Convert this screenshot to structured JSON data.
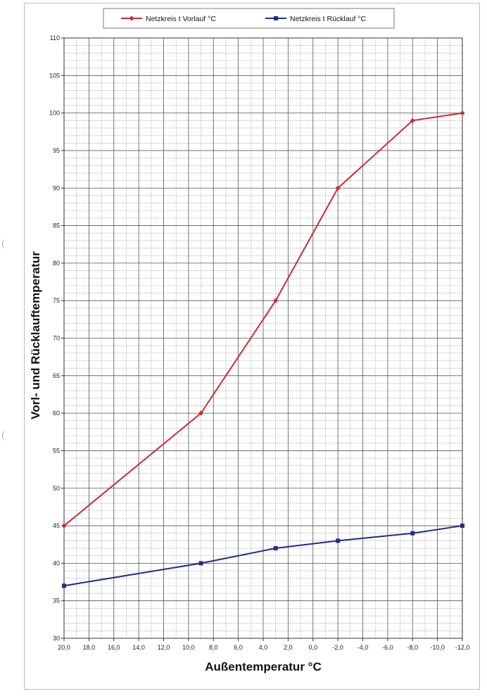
{
  "chart_data": {
    "type": "line",
    "xlabel": "Außentemperatur °C",
    "ylabel": "Vorl- und Rücklauftemperatur",
    "xlim": [
      20,
      -12
    ],
    "ylim": [
      30,
      110
    ],
    "x_ticks": [
      "20,0",
      "18,0",
      "16,0",
      "14,0",
      "12,0",
      "10,0",
      "8,0",
      "6,0",
      "4,0",
      "2,0",
      "0,0",
      "-2,0",
      "-4,0",
      "-6,0",
      "-8,0",
      "-10,0",
      "-12,0"
    ],
    "y_ticks": [
      "30",
      "35",
      "40",
      "45",
      "50",
      "55",
      "60",
      "65",
      "70",
      "75",
      "80",
      "85",
      "90",
      "95",
      "100",
      "105",
      "110"
    ],
    "grid": true,
    "legend_position": "top",
    "series": [
      {
        "name": "Netzkreis t Vorlauf °C",
        "color": "#cc2b36",
        "marker": "diamond",
        "points": [
          [
            20,
            45
          ],
          [
            9,
            60
          ],
          [
            3,
            75
          ],
          [
            -2,
            90
          ],
          [
            -8,
            99
          ],
          [
            -12,
            100
          ]
        ]
      },
      {
        "name": "Netzkreis t Rücklauf °C",
        "color": "#1f2d8a",
        "marker": "square",
        "points": [
          [
            20,
            37
          ],
          [
            9,
            40
          ],
          [
            3,
            42
          ],
          [
            -2,
            43
          ],
          [
            -8,
            44
          ],
          [
            -12,
            45
          ]
        ]
      }
    ]
  }
}
